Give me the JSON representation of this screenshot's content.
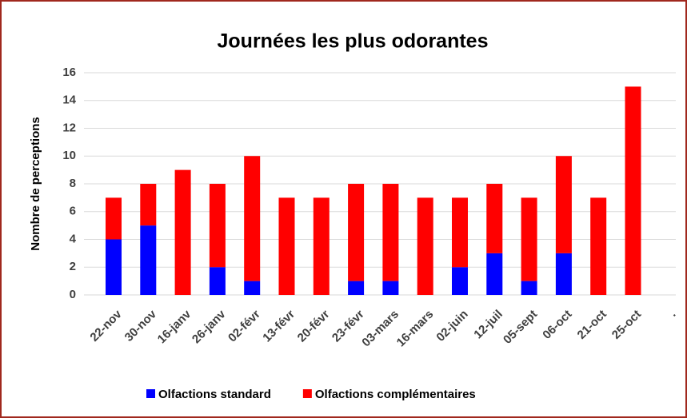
{
  "chart_data": {
    "type": "stacked_bar",
    "title": "Journées les plus odorantes",
    "y_label": "Nombre de perceptions",
    "categories": [
      "22-nov",
      "30-nov",
      "16-janv",
      "26-janv",
      "02-févr",
      "13-févr",
      "20-févr",
      "23-févr",
      "03-mars",
      "16-mars",
      "02-juin",
      "12-juil",
      "05-sept",
      "06-oct",
      "21-oct",
      "25-oct",
      "."
    ],
    "series": [
      {
        "name": "Olfactions standard",
        "color": "#0000ff",
        "values": [
          4,
          5,
          0,
          2,
          1,
          0,
          0,
          1,
          1,
          0,
          2,
          3,
          1,
          3,
          0,
          0,
          null
        ]
      },
      {
        "name": "Olfactions complémentaires",
        "color": "#ff0000",
        "values": [
          3,
          3,
          9,
          6,
          9,
          7,
          7,
          7,
          7,
          7,
          5,
          5,
          6,
          7,
          7,
          15,
          null
        ]
      }
    ],
    "ylim": [
      0,
      16
    ],
    "yticks": [
      0,
      2,
      4,
      6,
      8,
      10,
      12,
      14,
      16
    ],
    "grid": true,
    "legend": "bottom"
  }
}
